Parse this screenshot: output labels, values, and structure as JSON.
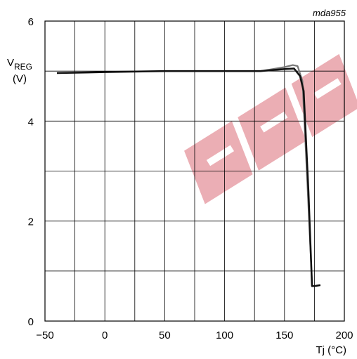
{
  "figure_code": "mda955",
  "chart_data": {
    "type": "line",
    "title": "",
    "xlabel": "Tj (°C)",
    "ylabel_main": "V",
    "ylabel_sub": "REG",
    "ylabel_unit": "(V)",
    "xlim": [
      -50,
      200
    ],
    "ylim": [
      0,
      6
    ],
    "x_ticks": [
      -50,
      0,
      50,
      100,
      150,
      200
    ],
    "x_tick_labels": [
      "−50",
      "0",
      "50",
      "100",
      "150",
      "200"
    ],
    "y_ticks": [
      0,
      2,
      4,
      6
    ],
    "y_tick_labels": [
      "0",
      "2",
      "4",
      "6"
    ],
    "grid": true,
    "x_grid_step": 25,
    "y_grid_step": 1,
    "series": [
      {
        "name": "",
        "color": "#111111",
        "x": [
          -40,
          0,
          50,
          100,
          130,
          150,
          158,
          163,
          166,
          170,
          173,
          175,
          180
        ],
        "y": [
          4.96,
          4.98,
          5.0,
          5.0,
          5.0,
          5.04,
          5.05,
          4.9,
          4.6,
          2.6,
          0.7,
          0.7,
          0.72
        ]
      },
      {
        "name": "",
        "color": "#777777",
        "x": [
          130,
          140,
          150,
          157,
          161,
          165,
          169,
          173
        ],
        "y": [
          5.0,
          5.04,
          5.08,
          5.12,
          5.1,
          4.8,
          2.8,
          0.75
        ]
      }
    ],
    "watermark_color": "#e8a0a8"
  }
}
